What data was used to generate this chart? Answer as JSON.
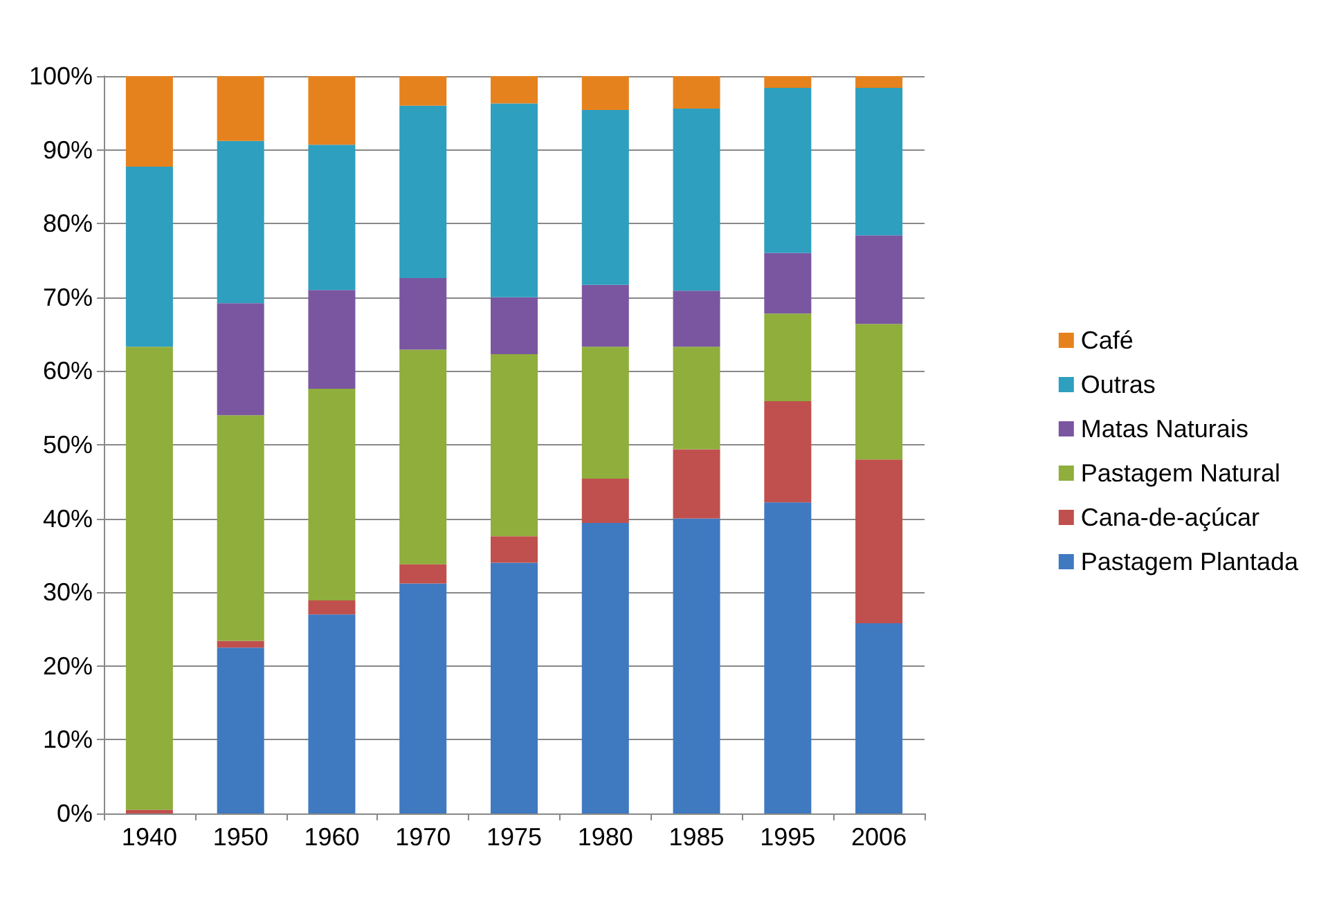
{
  "chart_data": {
    "type": "bar",
    "stacked": true,
    "categories": [
      "1940",
      "1950",
      "1960",
      "1970",
      "1975",
      "1980",
      "1985",
      "1995",
      "2006"
    ],
    "series": [
      {
        "name": "Pastagem Plantada",
        "color": "#3f79c0",
        "values": [
          0,
          22.5,
          27,
          31.2,
          34,
          39.4,
          40,
          42.2,
          25.8
        ]
      },
      {
        "name": "Cana-de-açúcar",
        "color": "#c0504d",
        "values": [
          0.5,
          0.9,
          1.9,
          2.6,
          3.6,
          6,
          9.4,
          13.7,
          22.2
        ]
      },
      {
        "name": "Pastagem Natural",
        "color": "#8fae3c",
        "values": [
          62.8,
          30.6,
          28.7,
          29.1,
          24.7,
          17.9,
          13.9,
          11.9,
          18.4
        ]
      },
      {
        "name": "Matas Naturais",
        "color": "#7a56a0",
        "values": [
          0,
          15.2,
          13.4,
          9.7,
          7.7,
          8.4,
          7.6,
          8.2,
          12
        ]
      },
      {
        "name": "Outras",
        "color": "#2e9fbf",
        "values": [
          24.4,
          22,
          19.7,
          23.4,
          26.3,
          23.7,
          24.7,
          22.4,
          20
        ]
      },
      {
        "name": "Café",
        "color": "#e6821e",
        "values": [
          12.3,
          8.8,
          9.3,
          4,
          3.7,
          4.6,
          4.4,
          1.6,
          1.6
        ]
      }
    ],
    "ylim": [
      0,
      100
    ],
    "yticks": [
      {
        "value": 0,
        "label": "0%"
      },
      {
        "value": 10,
        "label": "10%"
      },
      {
        "value": 20,
        "label": "20%"
      },
      {
        "value": 30,
        "label": "30%"
      },
      {
        "value": 40,
        "label": "40%"
      },
      {
        "value": 50,
        "label": "50%"
      },
      {
        "value": 60,
        "label": "60%"
      },
      {
        "value": 70,
        "label": "70%"
      },
      {
        "value": 80,
        "label": "80%"
      },
      {
        "value": 90,
        "label": "90%"
      },
      {
        "value": 100,
        "label": "100%"
      }
    ],
    "grid": "y",
    "legend": "right"
  }
}
